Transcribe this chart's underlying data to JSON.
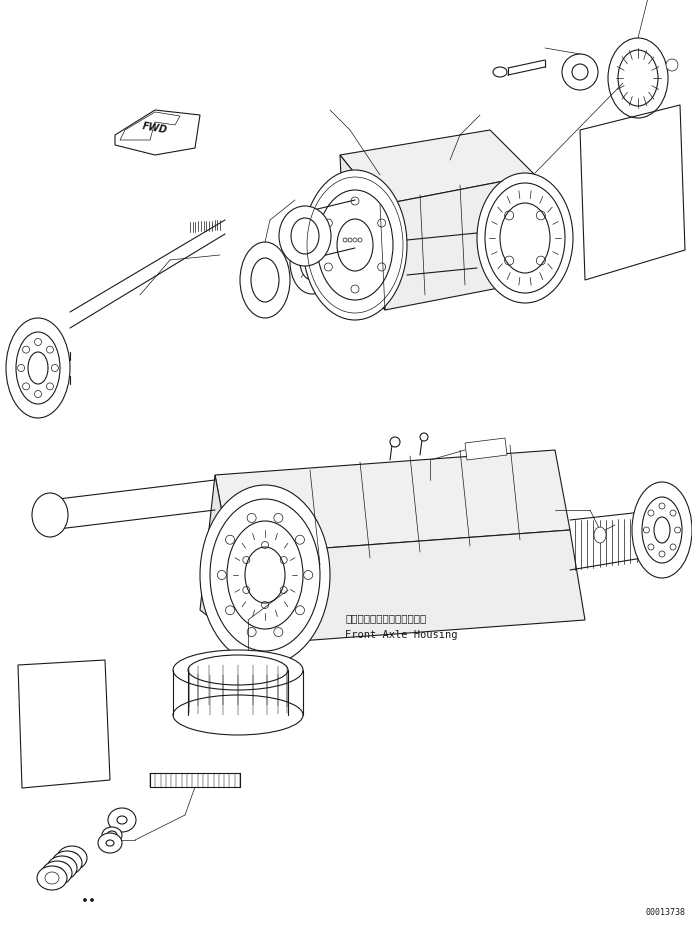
{
  "bg_color": "#ffffff",
  "line_color": "#1a1a1a",
  "fig_width": 6.92,
  "fig_height": 9.25,
  "dpi": 100,
  "serial_number": "00013738",
  "label_japanese": "フロントアクスルハウジング",
  "label_english": "Front Axle Housing",
  "fwd_label": "FWD"
}
